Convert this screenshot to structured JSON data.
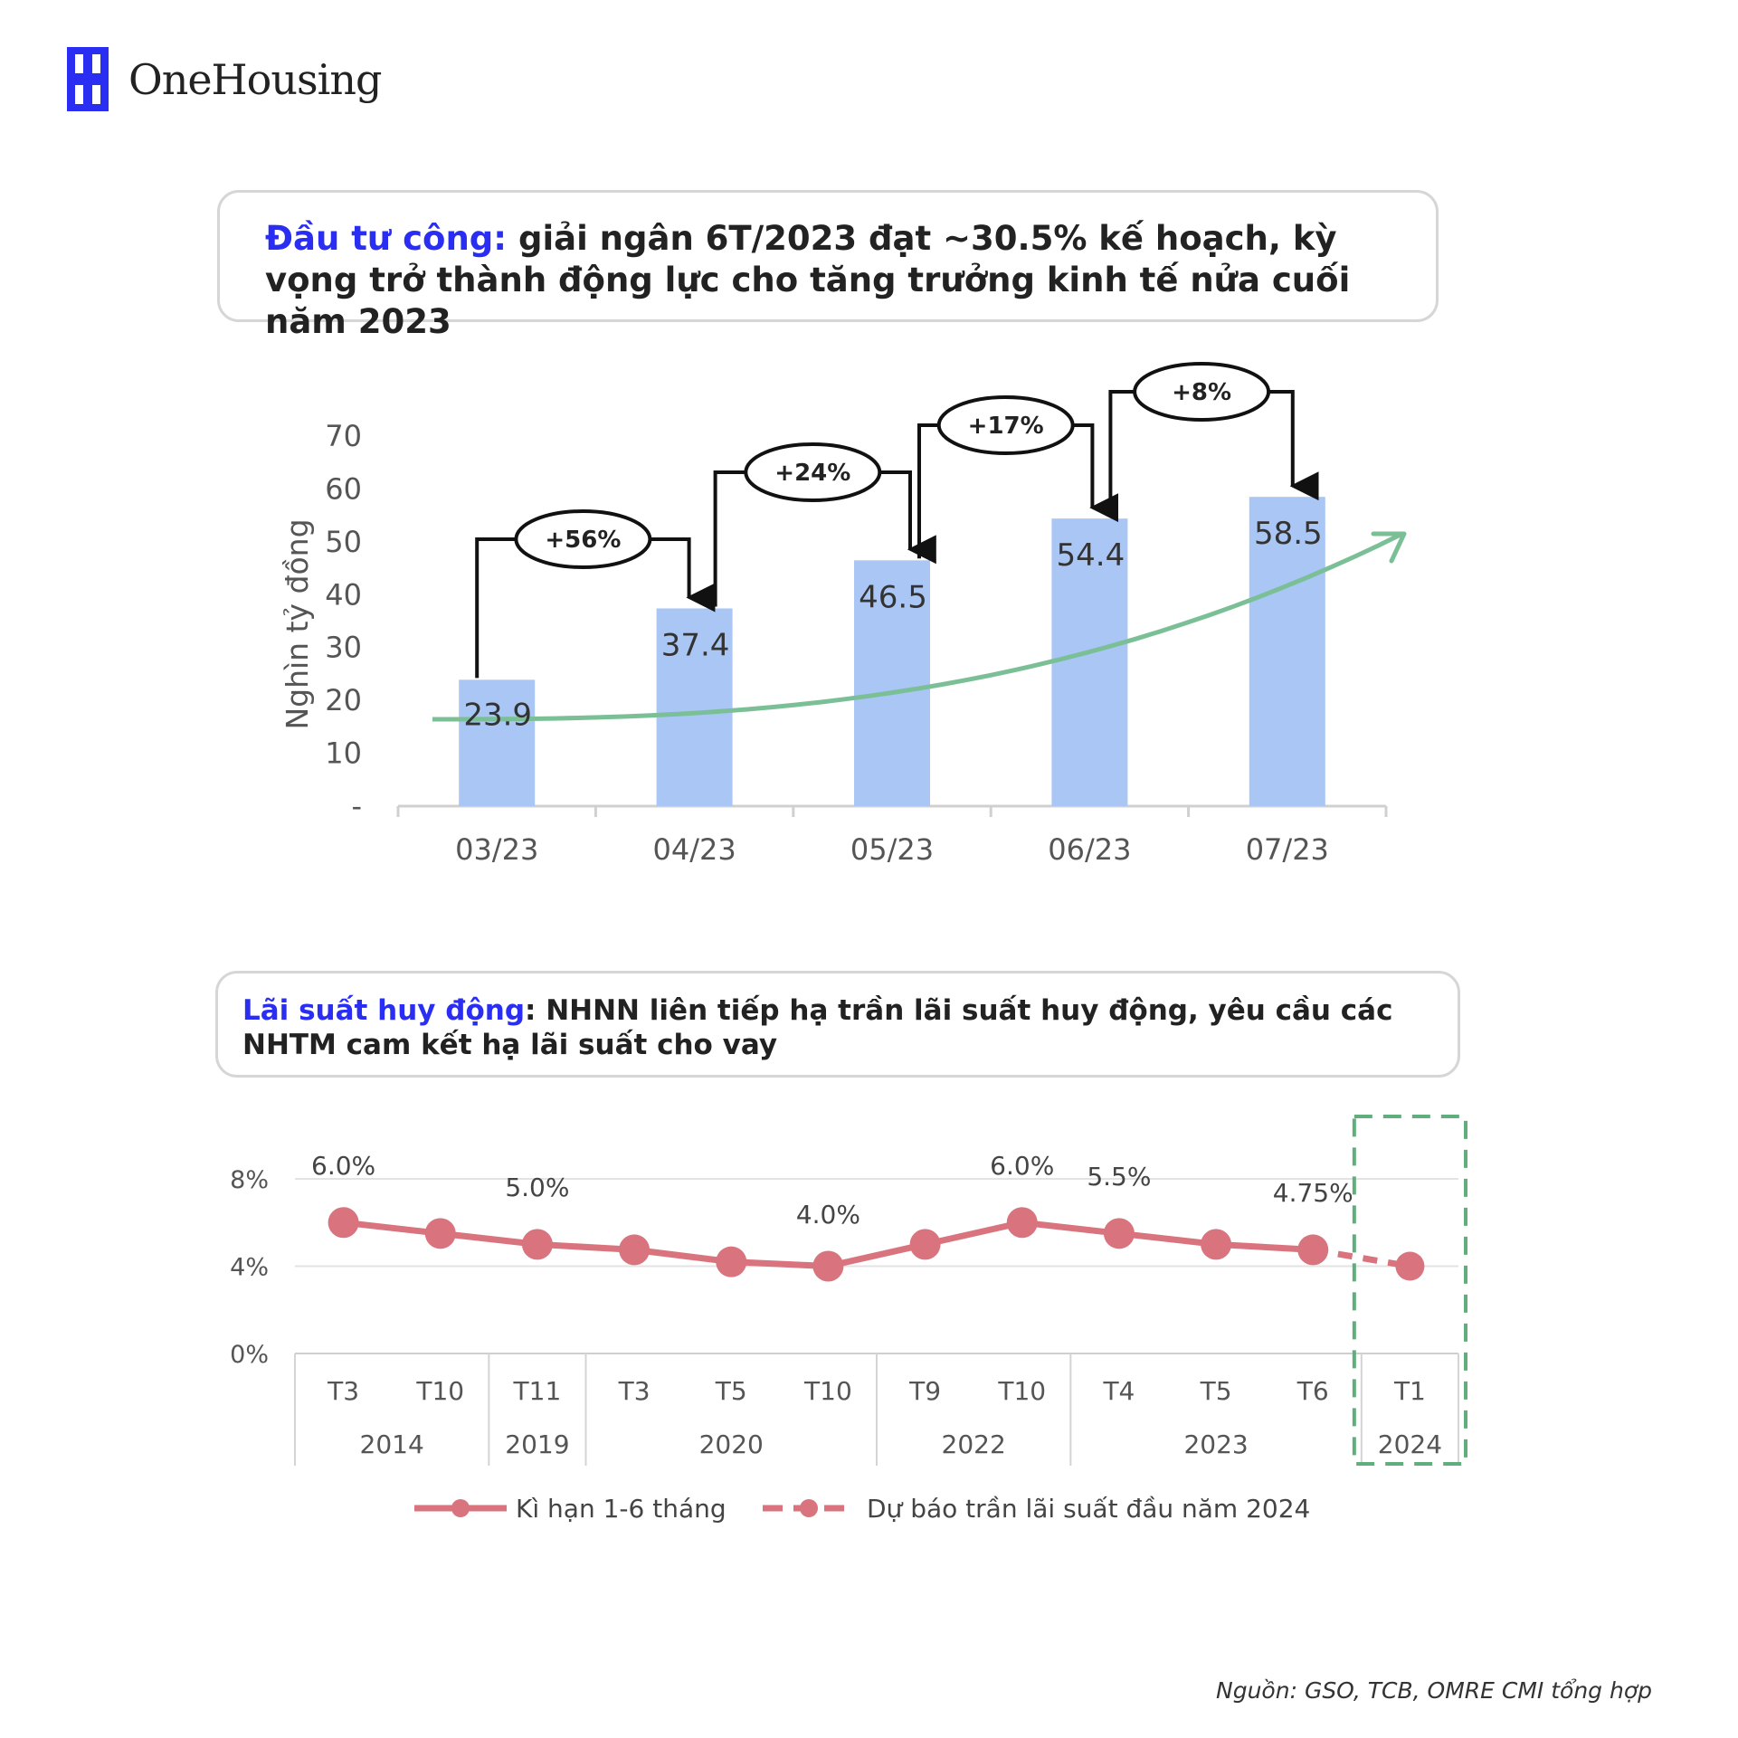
{
  "brand": {
    "name": "OneHousing",
    "icon": "onehousing-logo-icon",
    "color": "#2a2df2"
  },
  "headline1": {
    "accent": "Đầu tư công:",
    "text": " giải ngân 6T/2023 đạt ~30.5% kế hoạch, kỳ vọng trở thành động lực cho tăng trưởng kinh tế nửa cuối năm 2023"
  },
  "headline2": {
    "accent": "Lãi suất huy động",
    "text": ": NHNN liên tiếp hạ trần lãi suất huy động, yêu cầu các NHTM cam kết hạ lãi suất cho vay"
  },
  "source": "Nguồn: GSO, TCB, OMRE CMI tổng hợp",
  "colors": {
    "accent": "#2a2df2",
    "bar": "#a9c6f5",
    "trend": "#7bbf97",
    "line": "#d9747e",
    "forecast_box": "#5fae7c"
  },
  "chart_data": [
    {
      "type": "bar",
      "ylabel": "Nghìn tỷ đồng",
      "categories": [
        "03/23",
        "04/23",
        "05/23",
        "06/23",
        "07/23"
      ],
      "values": [
        23.9,
        37.4,
        46.5,
        54.4,
        58.5
      ],
      "value_labels": [
        "23.9",
        "37.4",
        "46.5",
        "54.4",
        "58.5"
      ],
      "ylim": [
        0,
        70
      ],
      "yticks": [
        0,
        10,
        20,
        30,
        40,
        50,
        60,
        70
      ],
      "ytick_labels": [
        "-",
        "10",
        "20",
        "30",
        "40",
        "50",
        "60",
        "70"
      ],
      "growth_annotations": [
        "+56%",
        "+24%",
        "+17%",
        "+8%"
      ],
      "trend_arrow": true,
      "grid": false
    },
    {
      "type": "line",
      "ylim": [
        0,
        8
      ],
      "yticks": [
        0,
        4,
        8
      ],
      "ytick_labels": [
        "0%",
        "4%",
        "8%"
      ],
      "grid": true,
      "x_months": [
        "T3",
        "T10",
        "T11",
        "T3",
        "T5",
        "T10",
        "T9",
        "T10",
        "T4",
        "T5",
        "T6",
        "T1"
      ],
      "x_years": [
        {
          "label": "2014",
          "count": 2
        },
        {
          "label": "2019",
          "count": 1
        },
        {
          "label": "2020",
          "count": 3
        },
        {
          "label": "2022",
          "count": 2
        },
        {
          "label": "2023",
          "count": 3
        },
        {
          "label": "2024",
          "count": 1
        }
      ],
      "series": [
        {
          "name": "Kì hạn 1-6 tháng",
          "values": [
            6.0,
            5.5,
            5.0,
            4.75,
            4.2,
            4.0,
            5.0,
            6.0,
            5.5,
            5.0,
            4.75,
            null
          ],
          "style": "solid"
        },
        {
          "name": "Dự báo trần lãi suất đầu năm 2024",
          "values": [
            null,
            null,
            null,
            null,
            null,
            null,
            null,
            null,
            null,
            null,
            4.75,
            4.0
          ],
          "style": "dashed"
        }
      ],
      "point_labels": [
        {
          "index": 0,
          "text": "6.0%"
        },
        {
          "index": 2,
          "text": "5.0%"
        },
        {
          "index": 5,
          "text": "4.0%"
        },
        {
          "index": 7,
          "text": "6.0%"
        },
        {
          "index": 8,
          "text": "5.5%"
        },
        {
          "index": 10,
          "text": "4.75%"
        }
      ],
      "legend_position": "bottom",
      "highlight_last": true
    }
  ]
}
